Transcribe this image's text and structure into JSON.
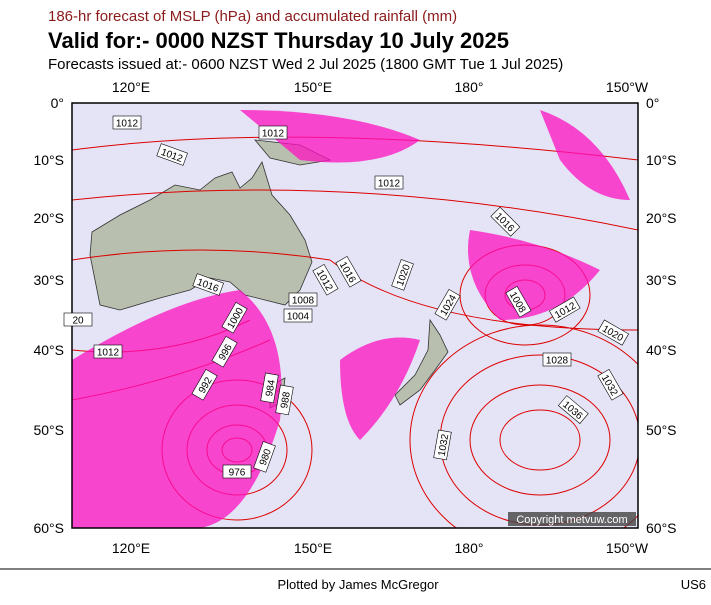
{
  "header": {
    "line1": "186-hr forecast of MSLP (hPa) and accumulated rainfall (mm)",
    "title": "Valid for:- 0000 NZST Thursday 10 July 2025",
    "subtitle": "Forecasts issued at:- 0600 NZST Wed 2 Jul 2025 (1800 GMT Tue 1 Jul 2025)"
  },
  "map": {
    "lon_labels": [
      "120°E",
      "150°E",
      "180°",
      "150°W"
    ],
    "lat_labels": [
      "0°",
      "10°S",
      "20°S",
      "30°S",
      "40°S",
      "50°S",
      "60°S"
    ],
    "isobar_labels": [
      "1012",
      "1012",
      "1012",
      "1012",
      "1016",
      "1016",
      "1012",
      "1016",
      "1020",
      "1008",
      "1004",
      "1000",
      "1024",
      "1008",
      "1012",
      "1020",
      "20",
      "1012",
      "996",
      "1028",
      "1032",
      "992",
      "988",
      "984",
      "1036",
      "1032",
      "980",
      "976"
    ],
    "copyright": "Copyright metvuw.com"
  },
  "footer": {
    "credit": "Plotted by James McGregor",
    "code": "US6"
  }
}
